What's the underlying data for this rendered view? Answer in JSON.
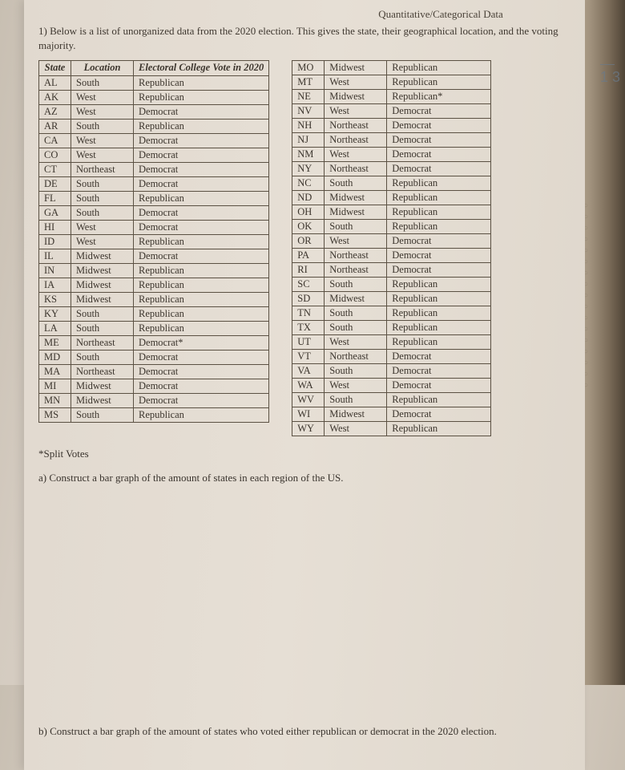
{
  "header_label": "Quantitative/Categorical Data",
  "question_number": "1)",
  "intro_text": "Below is a list of unorganized data from the 2020 election. This gives the state, their geographical location, and the voting majority.",
  "table": {
    "headers": {
      "state": "State",
      "location": "Location",
      "vote": "Electoral College Vote in 2020"
    },
    "left_rows": [
      {
        "s": "AL",
        "l": "South",
        "v": "Republican"
      },
      {
        "s": "AK",
        "l": "West",
        "v": "Republican"
      },
      {
        "s": "AZ",
        "l": "West",
        "v": "Democrat"
      },
      {
        "s": "AR",
        "l": "South",
        "v": "Republican"
      },
      {
        "s": "CA",
        "l": "West",
        "v": "Democrat"
      },
      {
        "s": "CO",
        "l": "West",
        "v": "Democrat"
      },
      {
        "s": "CT",
        "l": "Northeast",
        "v": "Democrat"
      },
      {
        "s": "DE",
        "l": "South",
        "v": "Democrat"
      },
      {
        "s": "FL",
        "l": "South",
        "v": "Republican"
      },
      {
        "s": "GA",
        "l": "South",
        "v": "Democrat"
      },
      {
        "s": "HI",
        "l": "West",
        "v": "Democrat"
      },
      {
        "s": "ID",
        "l": "West",
        "v": "Republican"
      },
      {
        "s": "IL",
        "l": "Midwest",
        "v": "Democrat"
      },
      {
        "s": "IN",
        "l": "Midwest",
        "v": "Republican"
      },
      {
        "s": "IA",
        "l": "Midwest",
        "v": "Republican"
      },
      {
        "s": "KS",
        "l": "Midwest",
        "v": "Republican"
      },
      {
        "s": "KY",
        "l": "South",
        "v": "Republican"
      },
      {
        "s": "LA",
        "l": "South",
        "v": "Republican"
      },
      {
        "s": "ME",
        "l": "Northeast",
        "v": "Democrat*"
      },
      {
        "s": "MD",
        "l": "South",
        "v": "Democrat"
      },
      {
        "s": "MA",
        "l": "Northeast",
        "v": "Democrat"
      },
      {
        "s": "MI",
        "l": "Midwest",
        "v": "Democrat"
      },
      {
        "s": "MN",
        "l": "Midwest",
        "v": "Democrat"
      },
      {
        "s": "MS",
        "l": "South",
        "v": "Republican"
      }
    ],
    "right_rows": [
      {
        "s": "MO",
        "l": "Midwest",
        "v": "Republican"
      },
      {
        "s": "MT",
        "l": "West",
        "v": "Republican"
      },
      {
        "s": "NE",
        "l": "Midwest",
        "v": "Republican*"
      },
      {
        "s": "NV",
        "l": "West",
        "v": "Democrat"
      },
      {
        "s": "NH",
        "l": "Northeast",
        "v": "Democrat"
      },
      {
        "s": "NJ",
        "l": "Northeast",
        "v": "Democrat"
      },
      {
        "s": "NM",
        "l": "West",
        "v": "Democrat"
      },
      {
        "s": "NY",
        "l": "Northeast",
        "v": "Democrat"
      },
      {
        "s": "NC",
        "l": "South",
        "v": "Republican"
      },
      {
        "s": "ND",
        "l": "Midwest",
        "v": "Republican"
      },
      {
        "s": "OH",
        "l": "Midwest",
        "v": "Republican"
      },
      {
        "s": "OK",
        "l": "South",
        "v": "Republican"
      },
      {
        "s": "OR",
        "l": "West",
        "v": "Democrat"
      },
      {
        "s": "PA",
        "l": "Northeast",
        "v": "Democrat"
      },
      {
        "s": "RI",
        "l": "Northeast",
        "v": "Democrat"
      },
      {
        "s": "SC",
        "l": "South",
        "v": "Republican"
      },
      {
        "s": "SD",
        "l": "Midwest",
        "v": "Republican"
      },
      {
        "s": "TN",
        "l": "South",
        "v": "Republican"
      },
      {
        "s": "TX",
        "l": "South",
        "v": "Republican"
      },
      {
        "s": "UT",
        "l": "West",
        "v": "Republican"
      },
      {
        "s": "VT",
        "l": "Northeast",
        "v": "Democrat"
      },
      {
        "s": "VA",
        "l": "South",
        "v": "Democrat"
      },
      {
        "s": "WA",
        "l": "West",
        "v": "Democrat"
      },
      {
        "s": "WV",
        "l": "South",
        "v": "Republican"
      },
      {
        "s": "WI",
        "l": "Midwest",
        "v": "Democrat"
      },
      {
        "s": "WY",
        "l": "West",
        "v": "Republican"
      }
    ]
  },
  "footnote": "*Split Votes",
  "question_a": "a) Construct a bar graph of the amount of states in each region of the US.",
  "question_b": "b) Construct a bar graph of the amount of states who voted either republican or democrat in the 2020 election.",
  "margin_note_1": "1",
  "margin_note_2": "3",
  "colors": {
    "text": "#3a342e",
    "border": "#5b5143",
    "paper_bg": "#e1d9cf"
  },
  "typography": {
    "body_fontsize_pt": 10,
    "header_italic": true
  }
}
